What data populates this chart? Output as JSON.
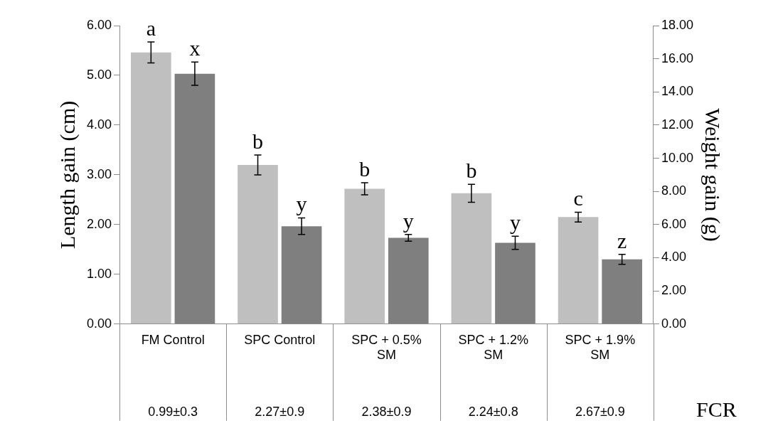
{
  "chart_data": {
    "type": "bar",
    "categories": [
      "FM Control",
      "SPC Control",
      "SPC + 0.5% SM",
      "SPC + 1.2% SM",
      "SPC + 1.9% SM"
    ],
    "ylabel": "Length gain (cm)",
    "y2label": "Weight gain (g)",
    "series": [
      {
        "color": "#bfbfbf",
        "values": [
          5.46,
          3.2,
          2.72,
          2.63,
          2.15
        ],
        "errors": [
          0.21,
          0.2,
          0.12,
          0.18,
          0.1
        ],
        "value_labels": [
          "a",
          "b",
          "b",
          "b",
          "c"
        ]
      },
      {
        "color": "#7f7f7f",
        "axis": "y2",
        "values": [
          15.1,
          5.9,
          5.2,
          4.9,
          3.9
        ],
        "errors": [
          0.7,
          0.5,
          0.2,
          0.4,
          0.3
        ],
        "value_labels": [
          "x",
          "y",
          "y",
          "y",
          "z"
        ]
      }
    ],
    "ylim": [
      0,
      6
    ],
    "yticks": [
      {
        "value": 0,
        "label": "0.00"
      },
      {
        "value": 1,
        "label": "1.00"
      },
      {
        "value": 2,
        "label": "2.00"
      },
      {
        "value": 3,
        "label": "3.00"
      },
      {
        "value": 4,
        "label": "4.00"
      },
      {
        "value": 5,
        "label": "5.00"
      },
      {
        "value": 6,
        "label": "6.00"
      }
    ],
    "y2lim": [
      0,
      18
    ],
    "y2ticks": [
      {
        "value": 0,
        "label": "0.00"
      },
      {
        "value": 2,
        "label": "2.00"
      },
      {
        "value": 4,
        "label": "4.00"
      },
      {
        "value": 6,
        "label": "6.00"
      },
      {
        "value": 8,
        "label": "8.00"
      },
      {
        "value": 10,
        "label": "10.00"
      },
      {
        "value": 12,
        "label": "12.00"
      },
      {
        "value": 14,
        "label": "14.00"
      },
      {
        "value": 16,
        "label": "16.00"
      },
      {
        "value": 18,
        "label": "18.00"
      }
    ],
    "grid": false,
    "legend": false,
    "annotations": [
      "0.99±0.3",
      "2.27±0.9",
      "2.38±0.9",
      "2.24±0.8",
      "2.67±0.9",
      "FCR"
    ]
  }
}
